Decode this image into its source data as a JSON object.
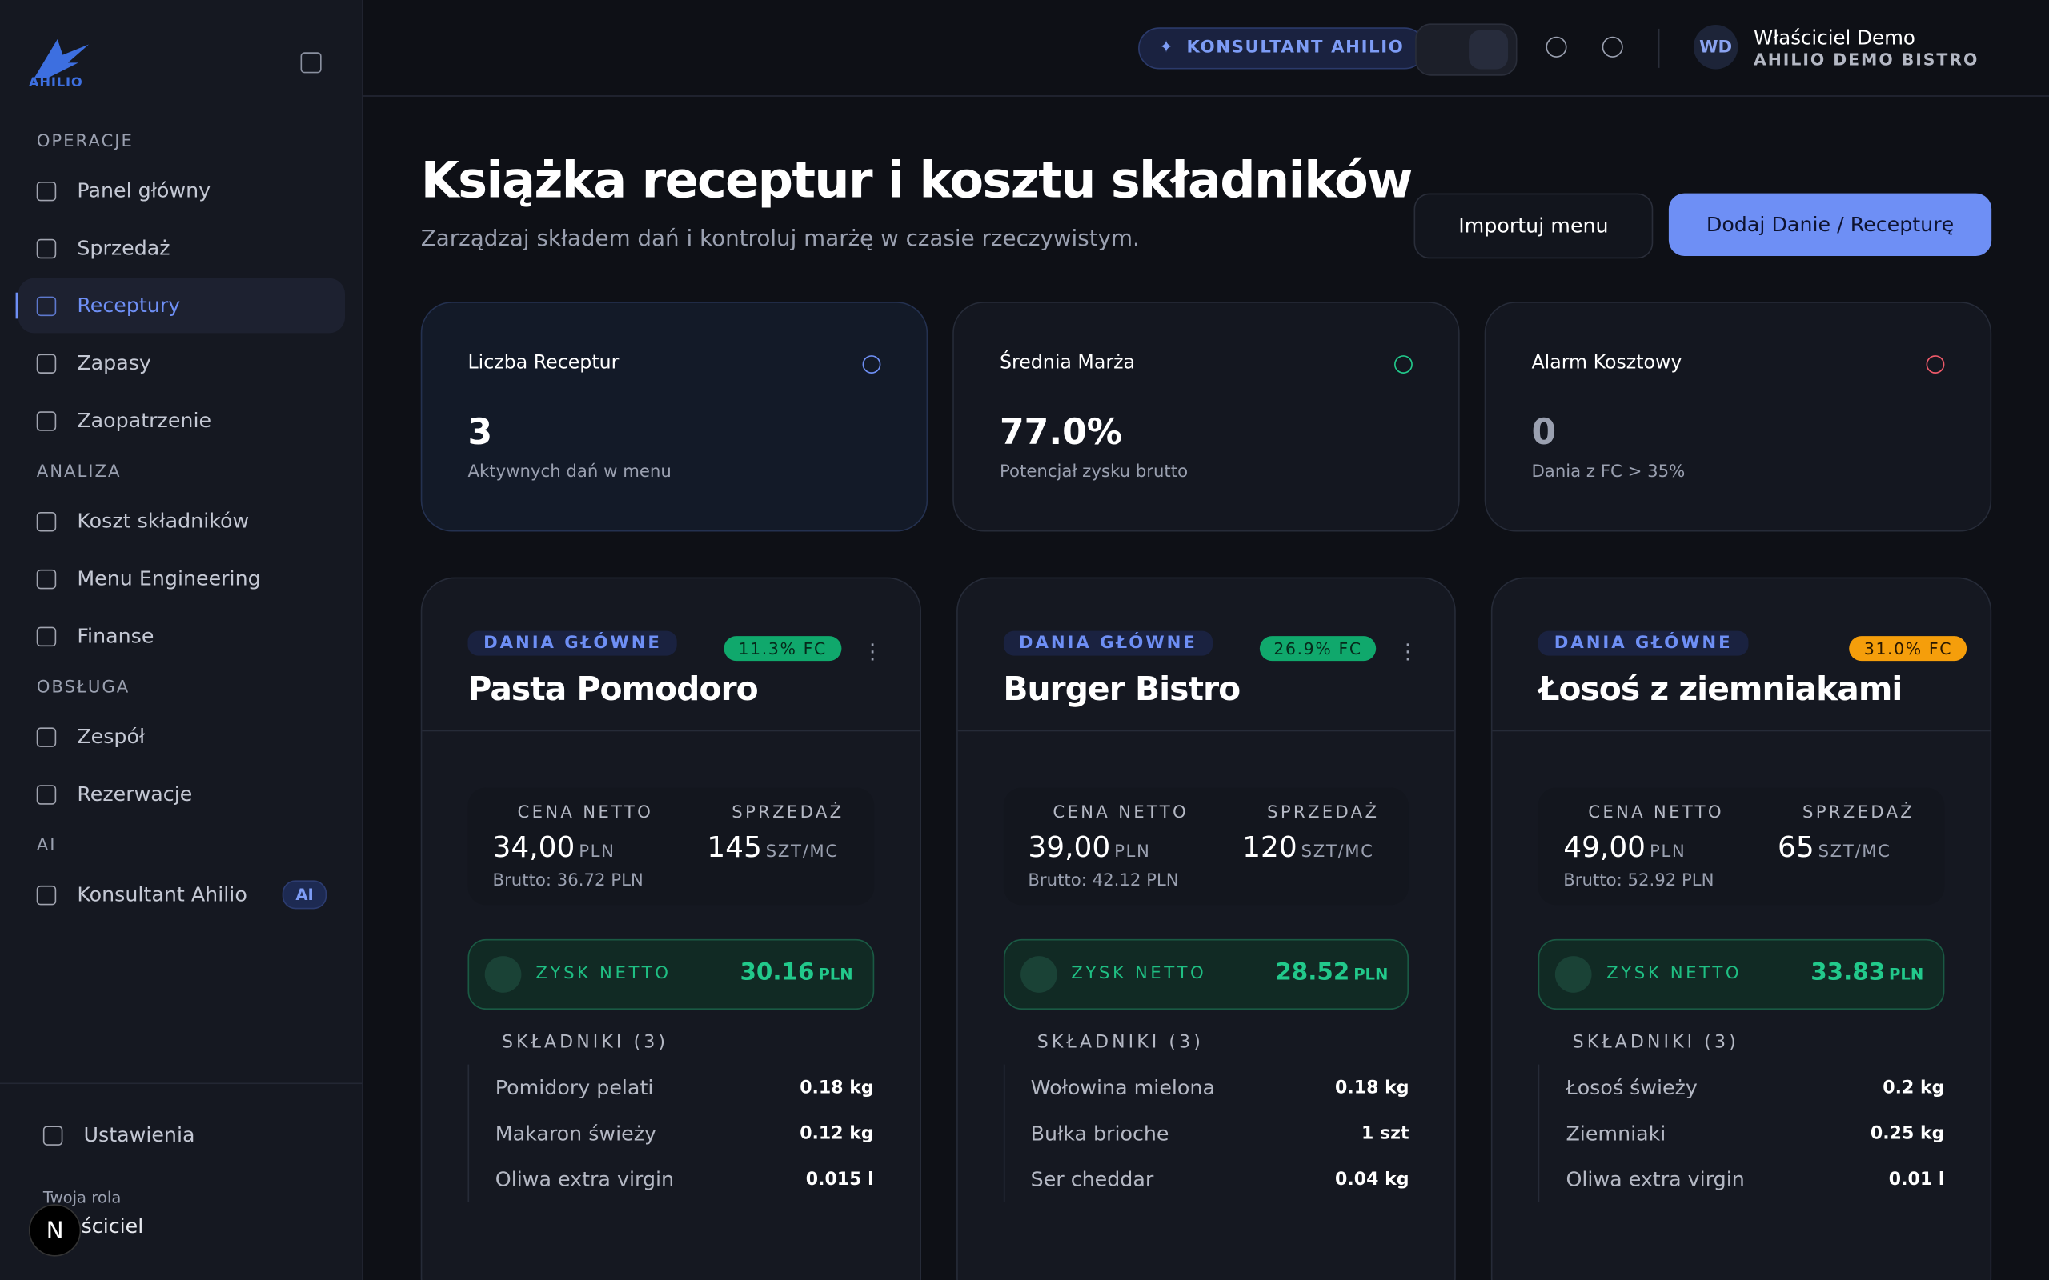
{
  "sidebar": {
    "logo": "AHILIO",
    "sections": [
      {
        "title": "OPERACJE",
        "items": [
          "Panel główny",
          "Sprzedaż",
          "Receptury",
          "Zapasy",
          "Zaopatrzenie"
        ]
      },
      {
        "title": "ANALIZA",
        "items": [
          "Koszt składników",
          "Menu Engineering",
          "Finanse"
        ]
      },
      {
        "title": "OBSŁUGA",
        "items": [
          "Zespół",
          "Rezerwacje"
        ]
      },
      {
        "title": "AI",
        "items": [
          "Konsultant Ahilio"
        ]
      }
    ],
    "ai_badge": "AI",
    "active": "Receptury",
    "settings": "Ustawienia",
    "role_label": "Twoja rola",
    "role": "Właściciel",
    "dev_badge": "N"
  },
  "topbar": {
    "consultant": "KONSULTANT AHILIO",
    "initials": "WD",
    "user": "Właściciel Demo",
    "company": "AHILIO DEMO BISTRO"
  },
  "header": {
    "title": "Książka receptur i kosztu składników",
    "subtitle": "Zarządzaj składem dań i kontroluj marżę w czasie rzeczywistym.",
    "import_button": "Importuj menu",
    "add_button": "Dodaj Danie / Recepturę"
  },
  "stats": [
    {
      "label": "Liczba Receptur",
      "value": "3",
      "note": "Aktywnych dań w menu"
    },
    {
      "label": "Średnia Marża",
      "value": "77.0%",
      "note": "Potencjał zysku brutto"
    },
    {
      "label": "Alarm Kosztowy",
      "value": "0",
      "note": "Dania z FC > 35%"
    }
  ],
  "recipes": [
    {
      "category": "DANIA GŁÓWNE",
      "fc": "11.3% FC",
      "name": "Pasta Pomodoro",
      "price_label": "CENA NETTO",
      "price": "34,00",
      "currency": "PLN",
      "gross": "Brutto: 36.72 PLN",
      "sales_label": "SPRZEDAŻ",
      "sales": "145",
      "sales_unit": "SZT/MC",
      "profit_label": "ZYSK NETTO",
      "profit": "30.16",
      "profit_unit": "PLN",
      "ingredients_label": "SKŁADNIKI (3)",
      "ingredients": [
        {
          "name": "Pomidory pelati",
          "qty": "0.18 kg"
        },
        {
          "name": "Makaron świeży",
          "qty": "0.12 kg"
        },
        {
          "name": "Oliwa extra virgin",
          "qty": "0.015 l"
        }
      ]
    },
    {
      "category": "DANIA GŁÓWNE",
      "fc": "26.9% FC",
      "name": "Burger Bistro",
      "price_label": "CENA NETTO",
      "price": "39,00",
      "currency": "PLN",
      "gross": "Brutto: 42.12 PLN",
      "sales_label": "SPRZEDAŻ",
      "sales": "120",
      "sales_unit": "SZT/MC",
      "profit_label": "ZYSK NETTO",
      "profit": "28.52",
      "profit_unit": "PLN",
      "ingredients_label": "SKŁADNIKI (3)",
      "ingredients": [
        {
          "name": "Wołowina mielona",
          "qty": "0.18 kg"
        },
        {
          "name": "Bułka brioche",
          "qty": "1 szt"
        },
        {
          "name": "Ser cheddar",
          "qty": "0.04 kg"
        }
      ]
    },
    {
      "category": "DANIA GŁÓWNE",
      "fc": "31.0% FC",
      "name": "Łosoś z ziemniakami",
      "price_label": "CENA NETTO",
      "price": "49,00",
      "currency": "PLN",
      "gross": "Brutto: 52.92 PLN",
      "sales_label": "SPRZEDAŻ",
      "sales": "65",
      "sales_unit": "SZT/MC",
      "profit_label": "ZYSK NETTO",
      "profit": "33.83",
      "profit_unit": "PLN",
      "ingredients_label": "SKŁADNIKI (3)",
      "ingredients": [
        {
          "name": "Łosoś świeży",
          "qty": "0.2 kg"
        },
        {
          "name": "Ziemniaki",
          "qty": "0.25 kg"
        },
        {
          "name": "Oliwa extra virgin",
          "qty": "0.01 l"
        }
      ]
    }
  ]
}
